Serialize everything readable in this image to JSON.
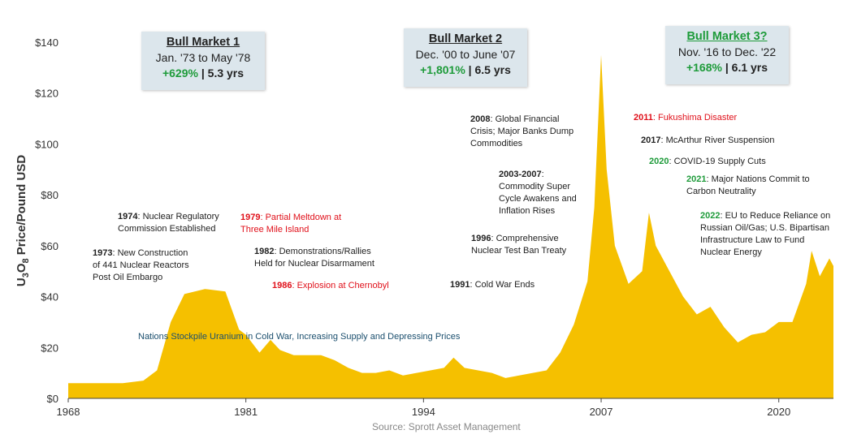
{
  "chart_data": {
    "type": "area",
    "ylabel": "U3O8 Price/Pound USD",
    "ylim": [
      0,
      140
    ],
    "xlim": [
      1968,
      2024
    ],
    "y_ticks": [
      "$0",
      "$20",
      "$40",
      "$60",
      "$80",
      "$100",
      "$120",
      "$140"
    ],
    "x_ticks": [
      "1968",
      "1981",
      "1994",
      "2007",
      "2020"
    ],
    "fill_color": "#f5c000",
    "grid": false,
    "series": [
      {
        "x": [
          1968,
          1970,
          1972,
          1973.5,
          1974.5,
          1975.5,
          1976.5,
          1978,
          1979.5,
          1980.5,
          1981,
          1982,
          1982.8,
          1983.5,
          1984.5,
          1985.5,
          1986.5,
          1987.5,
          1988.5,
          1989.5,
          1990.5,
          1991.5,
          1992.5,
          1993.5,
          1994.5,
          1995.5,
          1996.2,
          1997,
          1998,
          1999,
          2000,
          2001,
          2002,
          2003,
          2004,
          2005,
          2006,
          2006.5,
          2007,
          2007.4,
          2008,
          2009,
          2010,
          2010.5,
          2011,
          2012,
          2013,
          2014,
          2015,
          2016,
          2017,
          2018,
          2019,
          2020,
          2021,
          2022,
          2022.4,
          2023,
          2023.7,
          2024
        ],
        "y": [
          6,
          6,
          6,
          7,
          11,
          30,
          41,
          43,
          42,
          27,
          25,
          18,
          23,
          19,
          17,
          17,
          17,
          15,
          12,
          10,
          10,
          11,
          9,
          10,
          11,
          12,
          16,
          12,
          11,
          10,
          8,
          9,
          10,
          11,
          18,
          29,
          46,
          75,
          135,
          90,
          60,
          45,
          50,
          73,
          60,
          50,
          40,
          33,
          36,
          28,
          22,
          25,
          26,
          30,
          30,
          45,
          58,
          48,
          55,
          52
        ]
      }
    ],
    "callouts": [
      {
        "title": "Bull Market 1",
        "range": "Jan. '73 to May '78",
        "gain": "+629%",
        "sep": " | ",
        "duration": "5.3 yrs"
      },
      {
        "title": "Bull Market 2",
        "range": "Dec. '00 to June '07",
        "gain": "+1,801%",
        "sep": " | ",
        "duration": "6.5 yrs"
      },
      {
        "title": "Bull Market 3?",
        "range": "Nov. '16 to Dec. '22",
        "gain": "+168%",
        "sep": " | ",
        "duration": "6.1 yrs"
      }
    ],
    "annotations": [
      {
        "year": "1974",
        "text": ": Nuclear Regulatory",
        "line2": "Commission Established"
      },
      {
        "year": "1973",
        "text": ": New Construction",
        "line2": "of 441 Nuclear Reactors",
        "line3": "Post Oil Embargo"
      },
      {
        "year": "1979",
        "text": ": Partial Meltdown at",
        "line2": "Three Mile Island"
      },
      {
        "year": "1982",
        "text": ": Demonstrations/Rallies",
        "line2": "Held for Nuclear Disarmament"
      },
      {
        "year": "1986",
        "text": ": Explosion at Chernobyl"
      },
      {
        "year": "1991",
        "text": ": Cold War Ends"
      },
      {
        "year": "1996",
        "text": ": Comprehensive",
        "line2": "Nuclear Test Ban Treaty"
      },
      {
        "year": "2003-2007",
        "text": ":",
        "line2": "Commodity Super",
        "line3": "Cycle Awakens and",
        "line4": "Inflation Rises"
      },
      {
        "year": "2008",
        "text": ": Global Financial",
        "line2": "Crisis; Major Banks Dump",
        "line3": "Commodities"
      },
      {
        "year": "2011",
        "text": ": Fukushima Disaster"
      },
      {
        "year": "2017",
        "text": ": McArthur River Suspension"
      },
      {
        "year": "2020",
        "text": ": COVID-19 Supply Cuts"
      },
      {
        "year": "2021",
        "text": ": Major Nations Commit to",
        "line2": "Carbon Neutrality"
      },
      {
        "year": "2022",
        "text": ": EU to Reduce Reliance on",
        "line2": "Russian Oil/Gas; U.S. Bipartisan",
        "line3": "Infrastructure Law to Fund",
        "line4": "Nuclear Energy"
      }
    ],
    "stockpile_note": "Nations Stockpile Uranium in Cold War, Increasing Supply and Depressing Prices",
    "source": "Source: Sprott Asset Management"
  }
}
